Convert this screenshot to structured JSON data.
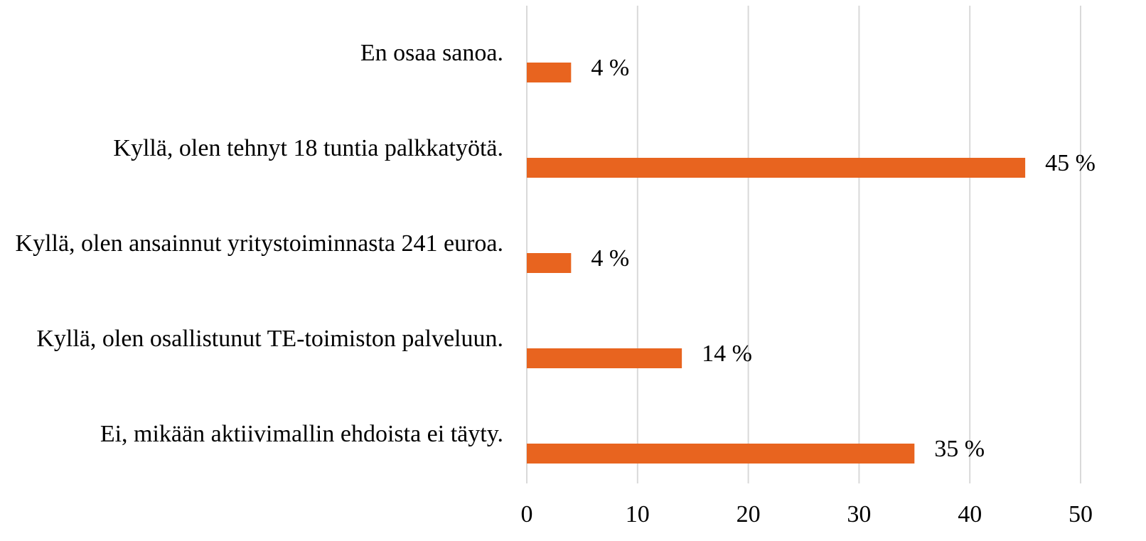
{
  "chart_data": {
    "type": "bar",
    "orientation": "horizontal",
    "categories": [
      "En osaa sanoa.",
      "Kyllä, olen tehnyt 18 tuntia palkkatyötä.",
      "Kyllä, olen ansainnut yritystoiminnasta 241 euroa.",
      "Kyllä, olen osallistunut TE-toimiston palveluun.",
      "Ei, mikään aktiivimallin ehdoista ei täyty."
    ],
    "values": [
      4,
      45,
      4,
      14,
      35
    ],
    "value_labels": [
      "4 %",
      "45 %",
      "4 %",
      "14 %",
      "35 %"
    ],
    "color": "#e8641f",
    "xlim": [
      0,
      50
    ],
    "xticks": [
      0,
      10,
      20,
      30,
      40,
      50
    ],
    "grid": true
  }
}
